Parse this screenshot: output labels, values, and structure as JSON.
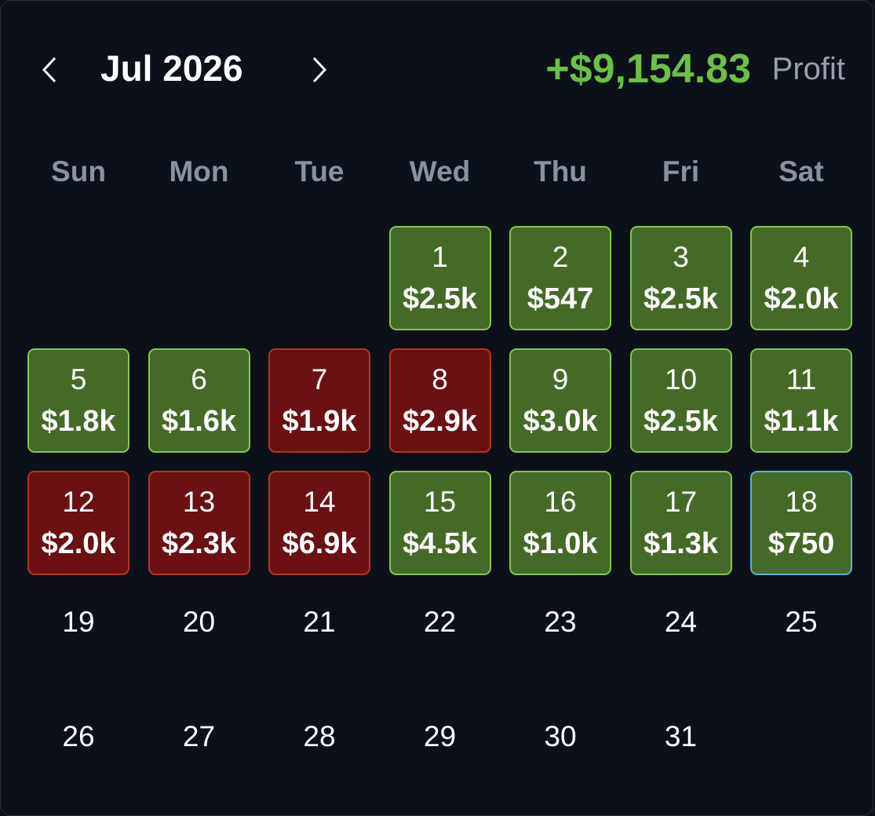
{
  "header": {
    "month": "Jul 2026",
    "profit": "+$9,154.83",
    "profit_label": "Profit",
    "profit_color": "#6cbf47"
  },
  "weekdays": [
    "Sun",
    "Mon",
    "Tue",
    "Wed",
    "Thu",
    "Fri",
    "Sat"
  ],
  "days": [
    {
      "day": 1,
      "amount": "$2.5k",
      "fill": "#436b27",
      "border": "#86c552"
    },
    {
      "day": 2,
      "amount": "$547",
      "fill": "#436b27",
      "border": "#86c552"
    },
    {
      "day": 3,
      "amount": "$2.5k",
      "fill": "#436b27",
      "border": "#86c552"
    },
    {
      "day": 4,
      "amount": "$2.0k",
      "fill": "#436b27",
      "border": "#86c552"
    },
    {
      "day": 5,
      "amount": "$1.8k",
      "fill": "#436b27",
      "border": "#86c552"
    },
    {
      "day": 6,
      "amount": "$1.6k",
      "fill": "#436b27",
      "border": "#86c552"
    },
    {
      "day": 7,
      "amount": "$1.9k",
      "fill": "#6b1111",
      "border": "#b3342b"
    },
    {
      "day": 8,
      "amount": "$2.9k",
      "fill": "#6b1111",
      "border": "#b3342b"
    },
    {
      "day": 9,
      "amount": "$3.0k",
      "fill": "#436b27",
      "border": "#86c552"
    },
    {
      "day": 10,
      "amount": "$2.5k",
      "fill": "#436b27",
      "border": "#86c552"
    },
    {
      "day": 11,
      "amount": "$1.1k",
      "fill": "#436b27",
      "border": "#86c552"
    },
    {
      "day": 12,
      "amount": "$2.0k",
      "fill": "#6b1111",
      "border": "#b3342b"
    },
    {
      "day": 13,
      "amount": "$2.3k",
      "fill": "#6b1111",
      "border": "#b3342b"
    },
    {
      "day": 14,
      "amount": "$6.9k",
      "fill": "#6b1111",
      "border": "#b3342b"
    },
    {
      "day": 15,
      "amount": "$4.5k",
      "fill": "#436b27",
      "border": "#86c552"
    },
    {
      "day": 16,
      "amount": "$1.0k",
      "fill": "#436b27",
      "border": "#86c552"
    },
    {
      "day": 17,
      "amount": "$1.3k",
      "fill": "#436b27",
      "border": "#86c552"
    },
    {
      "day": 18,
      "amount": "$750",
      "fill": "#436b27",
      "border": "#5ab2de"
    },
    {
      "day": 19
    },
    {
      "day": 20
    },
    {
      "day": 21
    },
    {
      "day": 22
    },
    {
      "day": 23
    },
    {
      "day": 24
    },
    {
      "day": 25
    },
    {
      "day": 26
    },
    {
      "day": 27
    },
    {
      "day": 28
    },
    {
      "day": 29
    },
    {
      "day": 30
    },
    {
      "day": 31
    }
  ]
}
